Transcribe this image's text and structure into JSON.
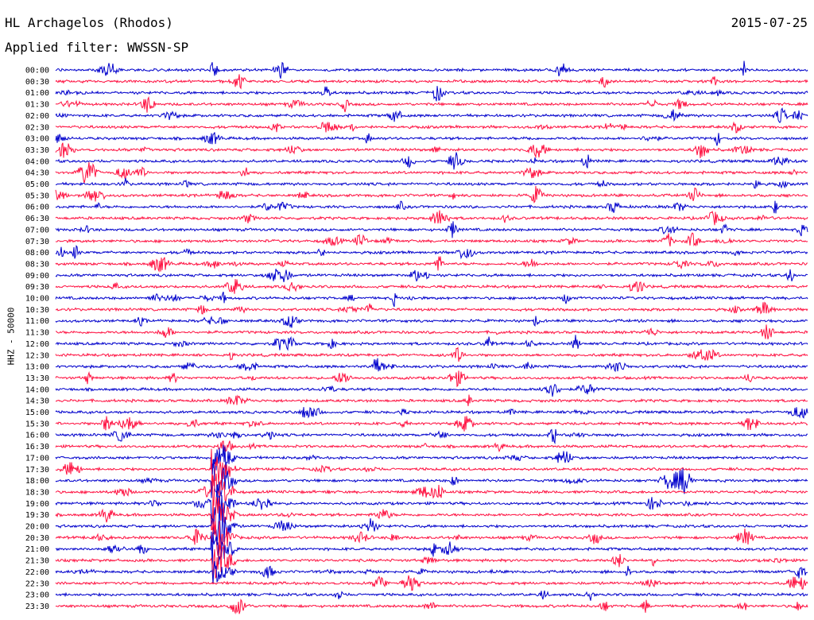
{
  "header": {
    "station": "HL Archagelos (Rhodos)",
    "date": "2015-07-25",
    "filter_label": "Applied filter: WWSSN-SP"
  },
  "chart_data": {
    "type": "line",
    "title": "HL Archagelos (Rhodos)",
    "ylabel": "HHZ - 50000",
    "xlabel": "",
    "rows": [
      "00:00",
      "00:30",
      "01:00",
      "01:30",
      "02:00",
      "02:30",
      "03:00",
      "03:30",
      "04:00",
      "04:30",
      "05:00",
      "05:30",
      "06:00",
      "06:30",
      "07:00",
      "07:30",
      "08:00",
      "08:30",
      "09:00",
      "09:30",
      "10:00",
      "10:30",
      "11:00",
      "11:30",
      "12:00",
      "12:30",
      "13:00",
      "13:30",
      "14:00",
      "14:30",
      "15:00",
      "15:30",
      "16:00",
      "16:30",
      "17:00",
      "17:30",
      "18:00",
      "18:30",
      "19:00",
      "19:30",
      "20:00",
      "20:30",
      "21:00",
      "21:30",
      "22:00",
      "22:30",
      "23:00",
      "23:30"
    ],
    "trace_colors": [
      "#0000cc",
      "#ff1040"
    ],
    "trace_period_minutes": 30,
    "major_event": {
      "start_row": "17:00",
      "end_row": "22:00",
      "note": "large seismic event"
    }
  }
}
